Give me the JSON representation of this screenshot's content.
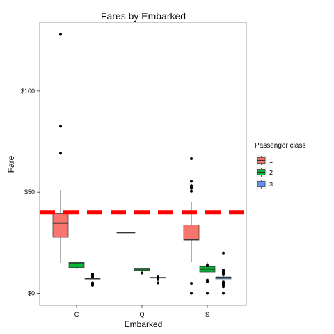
{
  "chart_data": {
    "type": "boxplot",
    "title": "Fares by Embarked",
    "xlabel": "Embarked",
    "ylabel": "Fare",
    "ylim": [
      -6,
      134
    ],
    "categories": [
      "C",
      "Q",
      "S"
    ],
    "y_ticks": [
      {
        "value": 0,
        "label": "$0"
      },
      {
        "value": 50,
        "label": "$50"
      },
      {
        "value": 100,
        "label": "$100"
      }
    ],
    "reference_line": {
      "value": 40,
      "color": "#ff0000",
      "style": "dashed"
    },
    "legend": {
      "title": "Passenger class",
      "position": "right"
    },
    "series": [
      {
        "name": "1",
        "color": "#f8766d",
        "boxes": [
          {
            "category": "C",
            "whisker_low": 15,
            "q1": 27.7,
            "median": 34.7,
            "q3": 39.6,
            "whisker_high": 51,
            "outliers": [
              69.2,
              82.6,
              128
            ]
          },
          {
            "category": "S",
            "whisker_low": 15.3,
            "q1": 26.3,
            "median": 26.7,
            "q3": 33.7,
            "whisker_high": 45.2,
            "outliers": [
              0,
              5,
              50.5,
              51.9,
              52.6,
              53.1,
              55.4,
              66.6
            ]
          }
        ]
      },
      {
        "name": "2",
        "color": "#00ba38",
        "boxes": [
          {
            "category": "C",
            "whisker_low": 12.1,
            "q1": 12.7,
            "median": 14.6,
            "q3": 15.2,
            "whisker_high": 15.8,
            "outliers": []
          },
          {
            "category": "Q",
            "whisker_low": 10.5,
            "q1": 11.3,
            "median": 12.0,
            "q3": 12.4,
            "whisker_high": 12.4,
            "outliers": [
              10
            ]
          },
          {
            "category": "S",
            "whisker_low": 10.5,
            "q1": 10.5,
            "median": 12.0,
            "q3": 13.5,
            "whisker_high": 15.7,
            "outliers": [
              0,
              5.8,
              6.5,
              13.8
            ]
          }
        ]
      },
      {
        "name": "3",
        "color": "#619cff",
        "boxes": [
          {
            "category": "C",
            "whisker_low": 7.2,
            "q1": 7.2,
            "median": 7.2,
            "q3": 7.2,
            "whisker_high": 7.2,
            "outliers": [
              4.0,
              4.6,
              5.0,
              5.2,
              8.0,
              8.6,
              9.2,
              9.5
            ]
          },
          {
            "category": "Q",
            "whisker_low": 6.5,
            "q1": 7.7,
            "median": 7.7,
            "q3": 7.8,
            "whisker_high": 8.3,
            "outliers": [
              5.2,
              6.8,
              8.1,
              8.4
            ]
          },
          {
            "category": "S",
            "whisker_low": 7.1,
            "q1": 7.1,
            "median": 7.9,
            "q3": 8.0,
            "whisker_high": 9.5,
            "outliers": [
              0,
              3.2,
              4.0,
              4.5,
              5.0,
              5.6,
              9.5,
              10,
              10.5,
              11.5,
              19.9
            ]
          }
        ]
      },
      {
        "name": "",
        "color": "#f8766d",
        "boxes": [
          {
            "category": "Q",
            "whisker_low": 30,
            "q1": 30,
            "median": 30,
            "q3": 30,
            "whisker_high": 30,
            "outliers": []
          }
        ]
      }
    ]
  }
}
